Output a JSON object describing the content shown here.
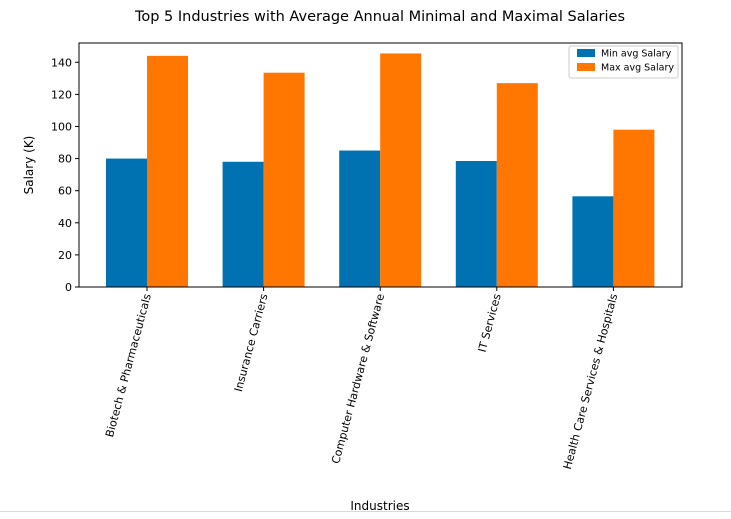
{
  "chart_data": {
    "type": "bar",
    "title": "Top 5 Industries with Average Annual Minimal and Maximal Salaries",
    "xlabel": "Industries",
    "ylabel": "Salary (K)",
    "categories": [
      "Biotech & Pharmaceuticals",
      "Insurance Carriers",
      "Computer Hardware & Software",
      "IT Services",
      "Health Care Services & Hospitals"
    ],
    "series": [
      {
        "name": "Min avg Salary",
        "values": [
          80,
          78,
          85,
          78.5,
          56.5
        ],
        "color": "#0072b2"
      },
      {
        "name": "Max avg Salary",
        "values": [
          144,
          133.5,
          145.5,
          127,
          98
        ],
        "color": "#ff7700"
      }
    ],
    "ylim": [
      0,
      152
    ],
    "yticks": [
      0,
      20,
      40,
      60,
      80,
      100,
      120,
      140
    ],
    "grid": false,
    "legend_position": "top-right"
  }
}
